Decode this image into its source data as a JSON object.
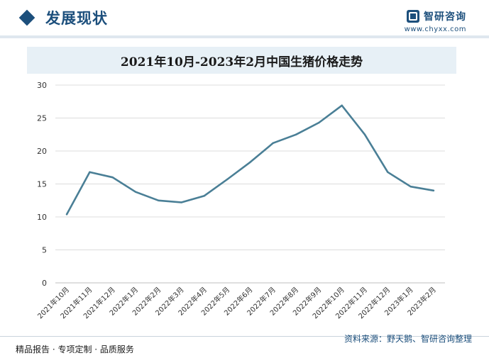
{
  "header": {
    "section_title": "发展现状",
    "brand_name": "智研咨询",
    "brand_url": "www.chyxx.com",
    "logo_icon": "chyxx-logo-icon"
  },
  "footer": {
    "source": "资料来源：野天鹅、智研咨询整理",
    "slogan": "精品报告 · 专项定制 · 品质服务"
  },
  "chart_data": {
    "type": "line",
    "title": "2021年10月-2023年2月中国生猪价格走势",
    "xlabel": "",
    "ylabel": "",
    "categories": [
      "2021年10月",
      "2021年11月",
      "2021年12月",
      "2022年1月",
      "2022年2月",
      "2022年3月",
      "2022年4月",
      "2022年5月",
      "2022年6月",
      "2022年7月",
      "2022年8月",
      "2022年9月",
      "2022年10月",
      "2022年11月",
      "2022年12月",
      "2023年1月",
      "2023年2月"
    ],
    "values": [
      10.4,
      16.8,
      16.0,
      13.8,
      12.5,
      12.2,
      13.2,
      15.7,
      18.3,
      21.2,
      22.5,
      24.3,
      26.9,
      22.5,
      16.8,
      14.6,
      14.0
    ],
    "ylim": [
      0,
      30
    ],
    "yticks": [
      0,
      5,
      10,
      15,
      20,
      25,
      30
    ],
    "grid": true,
    "line_color": "#4a7f96"
  }
}
